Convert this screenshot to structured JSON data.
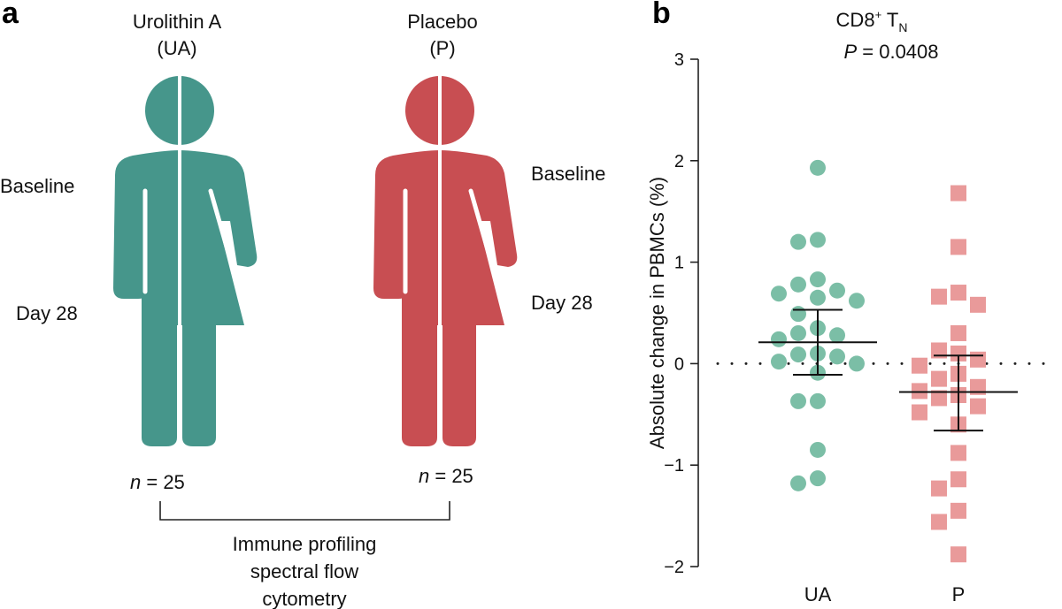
{
  "panel_a": {
    "letter": "a",
    "ua": {
      "title_line1": "Urolithin A",
      "title_line2": "(UA)",
      "baseline": "Baseline",
      "day28": "Day 28",
      "n_symbol": "n",
      "n_value": " = 25",
      "color": "#46968b"
    },
    "placebo": {
      "title_line1": "Placebo",
      "title_line2": "(P)",
      "baseline": "Baseline",
      "day28": "Day 28",
      "n_symbol": "n",
      "n_value": " = 25",
      "color": "#c84e52"
    },
    "caption_lines": [
      "Immune profiling",
      "spectral flow",
      "cytometry"
    ]
  },
  "panel_b": {
    "letter": "b",
    "title_main": "CD8",
    "title_sup": "+",
    "title_T": " T",
    "title_sub": "N",
    "p_label": "P",
    "p_value": " = 0.0408"
  },
  "chart_data": {
    "type": "scatter",
    "title": "CD8+ TN",
    "annotation": "P = 0.0408",
    "xlabel": "",
    "ylabel": "Absolute change in PBMCs (%)",
    "categories": [
      "UA",
      "P"
    ],
    "ylim": [
      -2,
      3
    ],
    "yticks": [
      -2,
      -1,
      0,
      1,
      2,
      3
    ],
    "ytick_labels": [
      "−2",
      "−1",
      "0",
      "1",
      "2",
      "3"
    ],
    "reference_line": 0,
    "series": [
      {
        "name": "UA",
        "marker": "circle",
        "color": "#7bbea6",
        "mean": 0.21,
        "sem_upper": 0.53,
        "sem_lower": -0.11,
        "values": [
          1.93,
          1.2,
          1.22,
          0.72,
          0.69,
          0.83,
          0.78,
          0.62,
          0.65,
          0.49,
          0.28,
          0.35,
          0.3,
          0.24,
          0.09,
          0.07,
          0.02,
          0.0,
          0.1,
          -0.09,
          -0.37,
          -0.37,
          -0.85,
          -1.13,
          -1.18
        ]
      },
      {
        "name": "P",
        "marker": "square",
        "color": "#e99a9a",
        "mean": -0.28,
        "sem_upper": 0.08,
        "sem_lower": -0.66,
        "values": [
          1.68,
          1.15,
          0.7,
          0.66,
          0.58,
          0.3,
          0.13,
          0.1,
          0.04,
          -0.02,
          -0.1,
          -0.15,
          -0.23,
          -0.27,
          -0.31,
          -0.34,
          -0.42,
          -0.48,
          -0.6,
          -0.88,
          -1.14,
          -1.23,
          -1.45,
          -1.56,
          -1.88
        ]
      }
    ]
  }
}
